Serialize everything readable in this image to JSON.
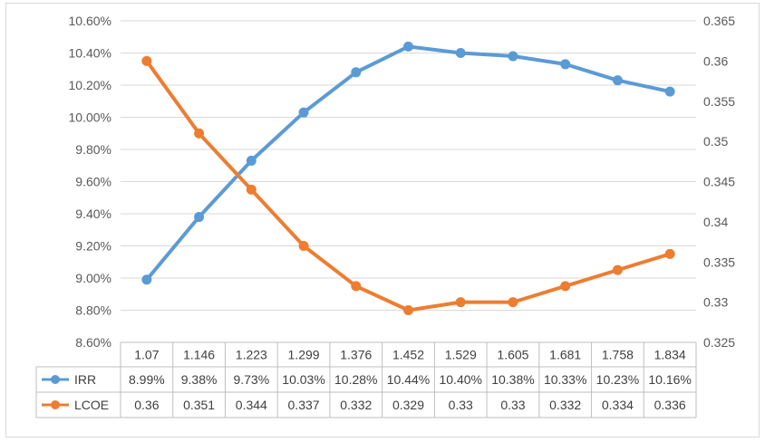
{
  "chart_data": {
    "type": "line",
    "categories": [
      "1.07",
      "1.146",
      "1.223",
      "1.299",
      "1.376",
      "1.452",
      "1.529",
      "1.605",
      "1.681",
      "1.758",
      "1.834"
    ],
    "series": [
      {
        "name": "IRR",
        "axis": "left",
        "color": "#5b9bd5",
        "values": [
          8.99,
          9.38,
          9.73,
          10.03,
          10.28,
          10.44,
          10.4,
          10.38,
          10.33,
          10.23,
          10.16
        ],
        "labels": [
          "8.99%",
          "9.38%",
          "9.73%",
          "10.03%",
          "10.28%",
          "10.44%",
          "10.40%",
          "10.38%",
          "10.33%",
          "10.23%",
          "10.16%"
        ]
      },
      {
        "name": "LCOE",
        "axis": "right",
        "color": "#ed7d31",
        "values": [
          0.36,
          0.351,
          0.344,
          0.337,
          0.332,
          0.329,
          0.33,
          0.33,
          0.332,
          0.334,
          0.336
        ],
        "labels": [
          "0.36",
          "0.351",
          "0.344",
          "0.337",
          "0.332",
          "0.329",
          "0.33",
          "0.33",
          "0.332",
          "0.334",
          "0.336"
        ]
      }
    ],
    "y_left": {
      "ylim": [
        8.6,
        10.6
      ],
      "ticks": [
        "8.60%",
        "8.80%",
        "9.00%",
        "9.20%",
        "9.40%",
        "9.60%",
        "9.80%",
        "10.00%",
        "10.20%",
        "10.40%",
        "10.60%"
      ]
    },
    "y_right": {
      "ylim": [
        0.325,
        0.365
      ],
      "ticks": [
        "0.325",
        "0.33",
        "0.335",
        "0.34",
        "0.345",
        "0.35",
        "0.355",
        "0.36",
        "0.365"
      ]
    },
    "grid": true,
    "legend": "data-table"
  }
}
